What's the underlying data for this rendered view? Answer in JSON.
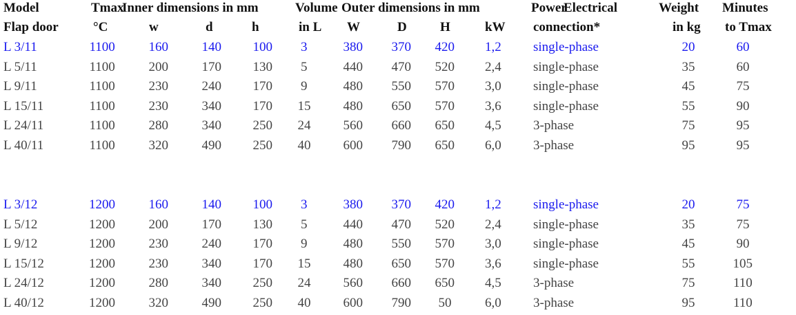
{
  "table": {
    "header": [
      [
        "Model",
        "Tmax",
        "Inner dimensions in mm",
        "Volume",
        "Outer dimensions in mm",
        "Power",
        "Electrical",
        "Weight",
        "Minutes"
      ],
      [
        "Flap door",
        "°C",
        "w",
        "d",
        "h",
        "in L",
        "W",
        "D",
        "H",
        "kW",
        "connection*",
        "in kg",
        "to Tmax"
      ]
    ],
    "groups": [
      [
        [
          "L 3/11",
          "1100",
          "160",
          "140",
          "100",
          "3",
          "380",
          "370",
          "420",
          "1,2",
          "single-phase",
          "20",
          "60"
        ],
        [
          "L 5/11",
          "1100",
          "200",
          "170",
          "130",
          "5",
          "440",
          "470",
          "520",
          "2,4",
          "single-phase",
          "35",
          "60"
        ],
        [
          "L 9/11",
          "1100",
          "230",
          "240",
          "170",
          "9",
          "480",
          "550",
          "570",
          "3,0",
          "single-phase",
          "45",
          "75"
        ],
        [
          "L 15/11",
          "1100",
          "230",
          "340",
          "170",
          "15",
          "480",
          "650",
          "570",
          "3,6",
          "single-phase",
          "55",
          "90"
        ],
        [
          "L 24/11",
          "1100",
          "280",
          "340",
          "250",
          "24",
          "560",
          "660",
          "650",
          "4,5",
          "3-phase",
          "75",
          "95"
        ],
        [
          "L 40/11",
          "1100",
          "320",
          "490",
          "250",
          "40",
          "600",
          "790",
          "650",
          "6,0",
          "3-phase",
          "95",
          "95"
        ]
      ],
      [
        [
          "L 3/12",
          "1200",
          "160",
          "140",
          "100",
          "3",
          "380",
          "370",
          "420",
          "1,2",
          "single-phase",
          "20",
          "75"
        ],
        [
          "L 5/12",
          "1200",
          "200",
          "170",
          "130",
          "5",
          "440",
          "470",
          "520",
          "2,4",
          "single-phase",
          "35",
          "75"
        ],
        [
          "L 9/12",
          "1200",
          "230",
          "240",
          "170",
          "9",
          "480",
          "550",
          "570",
          "3,0",
          "single-phase",
          "45",
          "90"
        ],
        [
          "L 15/12",
          "1200",
          "230",
          "340",
          "170",
          "15",
          "480",
          "650",
          "570",
          "3,6",
          "single-phase",
          "55",
          "105"
        ],
        [
          "L 24/12",
          "1200",
          "280",
          "340",
          "250",
          "24",
          "560",
          "660",
          "650",
          "4,5",
          "3-phase",
          "75",
          "110"
        ],
        [
          "L 40/12",
          "1200",
          "320",
          "490",
          "250",
          "40",
          "600",
          "790",
          "50",
          "6,0",
          "3-phase",
          "95",
          "110"
        ]
      ]
    ]
  }
}
